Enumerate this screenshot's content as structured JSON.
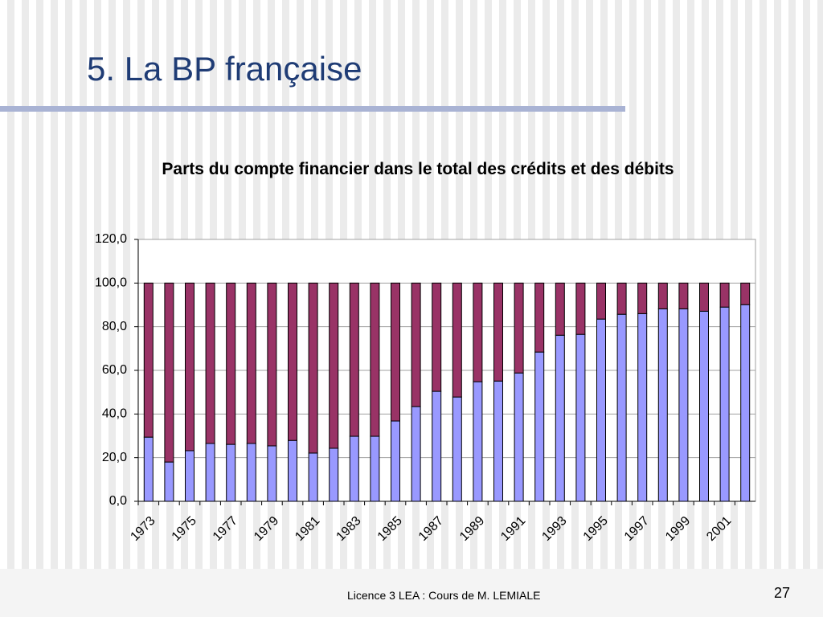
{
  "slide": {
    "title": "5. La BP française",
    "footer": "Licence 3 LEA : Cours de M. LEMIALE",
    "page": "27"
  },
  "chart_data": {
    "type": "stacked-bar",
    "title": "Parts du compte financier dans le total des crédits et des débits",
    "categories": [
      "1973",
      null,
      "1975",
      null,
      "1977",
      null,
      "1979",
      null,
      "1981",
      null,
      "1983",
      null,
      "1985",
      null,
      "1987",
      null,
      "1989",
      null,
      "1991",
      null,
      "1993",
      null,
      "1995",
      null,
      "1997",
      null,
      "1999",
      null,
      "2001",
      null
    ],
    "series": [
      {
        "color": "#9999ff",
        "values": [
          29.4,
          18.0,
          23.2,
          26.5,
          26.1,
          26.5,
          25.4,
          27.9,
          22.1,
          24.3,
          29.8,
          29.8,
          36.8,
          43.4,
          50.4,
          47.8,
          54.8,
          55.1,
          58.8,
          68.4,
          76.1,
          76.5,
          83.5,
          85.7,
          86.0,
          88.2,
          88.2,
          87.1,
          89.0,
          90.1
        ]
      },
      {
        "color": "#993366",
        "values": [
          70.6,
          82.0,
          76.8,
          73.5,
          73.9,
          73.5,
          74.6,
          72.1,
          77.9,
          75.7,
          70.2,
          70.2,
          63.2,
          56.6,
          49.6,
          52.2,
          45.2,
          44.9,
          41.2,
          31.6,
          23.9,
          23.5,
          16.5,
          14.3,
          14.0,
          11.8,
          11.8,
          12.9,
          11.0,
          9.9
        ]
      }
    ],
    "ylim": [
      0,
      120
    ],
    "yticks": [
      {
        "value": 0,
        "label": "0,0"
      },
      {
        "value": 20,
        "label": "20,0"
      },
      {
        "value": 40,
        "label": "40,0"
      },
      {
        "value": 60,
        "label": "60,0"
      },
      {
        "value": 80,
        "label": "80,0"
      },
      {
        "value": 100,
        "label": "100,0"
      },
      {
        "value": 120,
        "label": "120,0"
      }
    ],
    "grid": true
  }
}
